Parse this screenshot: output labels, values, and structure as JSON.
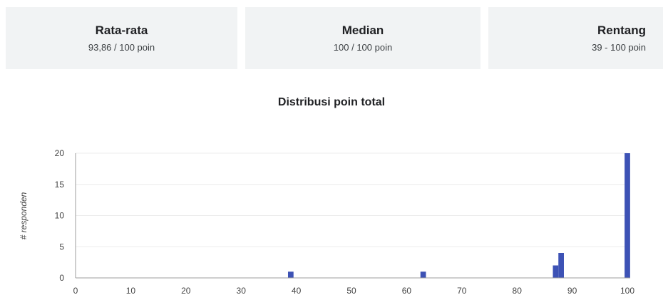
{
  "stats": [
    {
      "label": "Rata-rata",
      "value": "93,86 / 100 poin"
    },
    {
      "label": "Median",
      "value": "100 / 100 poin"
    },
    {
      "label": "Rentang",
      "value": "39 - 100 poin"
    }
  ],
  "chart_data": {
    "type": "bar",
    "title": "Distribusi poin total",
    "xlabel": "",
    "ylabel": "# responden",
    "x_ticks": [
      0,
      10,
      20,
      30,
      40,
      50,
      60,
      70,
      80,
      90,
      100
    ],
    "y_ticks": [
      0,
      5,
      10,
      15,
      20
    ],
    "xlim": [
      0,
      100
    ],
    "ylim": [
      0,
      20
    ],
    "bar_color": "#3d52b5",
    "bars": [
      {
        "x": 39,
        "y": 1
      },
      {
        "x": 63,
        "y": 1
      },
      {
        "x": 87,
        "y": 2
      },
      {
        "x": 88,
        "y": 4
      },
      {
        "x": 100,
        "y": 20
      }
    ]
  }
}
